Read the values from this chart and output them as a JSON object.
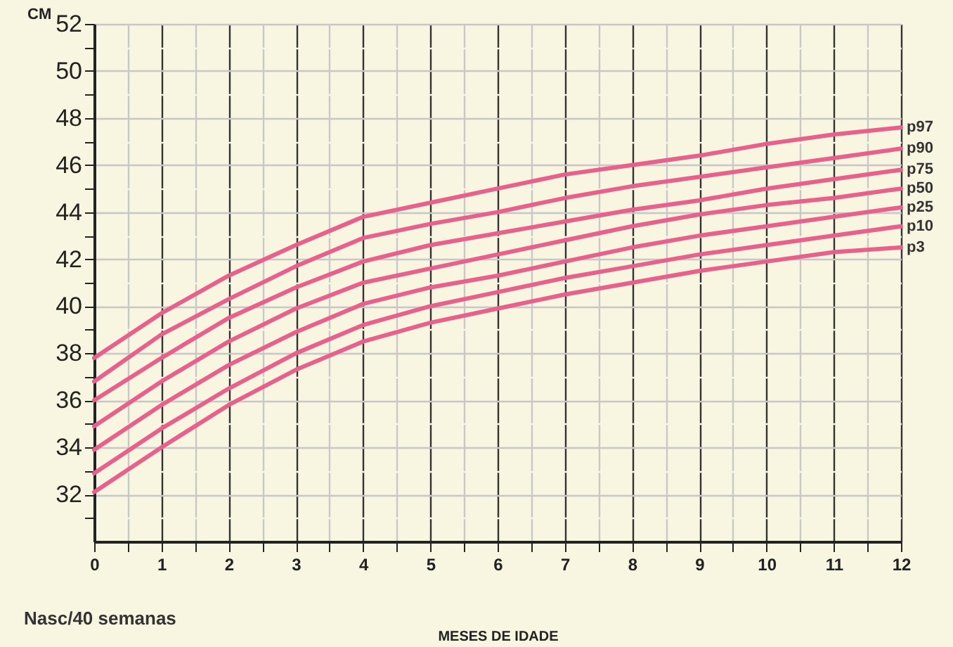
{
  "chart_data": {
    "type": "line",
    "ylabel": "CM",
    "xlabel": "MESES DE IDADE",
    "annotations": [
      "Nasc/40 semanas"
    ],
    "x": [
      0,
      1,
      2,
      3,
      4,
      5,
      6,
      7,
      8,
      9,
      10,
      11,
      12
    ],
    "series": [
      {
        "name": "p97",
        "color": "#e8618c",
        "values": [
          37.8,
          39.7,
          41.3,
          42.6,
          43.8,
          44.4,
          45.0,
          45.6,
          46.0,
          46.4,
          46.9,
          47.3,
          47.6
        ]
      },
      {
        "name": "p90",
        "color": "#e8618c",
        "values": [
          36.8,
          38.8,
          40.3,
          41.7,
          42.9,
          43.5,
          44.0,
          44.6,
          45.1,
          45.5,
          45.9,
          46.3,
          46.7
        ]
      },
      {
        "name": "p75",
        "color": "#e8618c",
        "values": [
          36.0,
          37.8,
          39.5,
          40.8,
          41.9,
          42.6,
          43.1,
          43.6,
          44.1,
          44.5,
          45.0,
          45.4,
          45.8
        ]
      },
      {
        "name": "p50",
        "color": "#e8618c",
        "values": [
          34.9,
          36.8,
          38.5,
          39.9,
          41.0,
          41.6,
          42.2,
          42.8,
          43.4,
          43.9,
          44.3,
          44.6,
          45.0
        ]
      },
      {
        "name": "p25",
        "color": "#e8618c",
        "values": [
          33.9,
          35.8,
          37.5,
          38.9,
          40.1,
          40.8,
          41.3,
          41.9,
          42.5,
          43.0,
          43.4,
          43.8,
          44.2
        ]
      },
      {
        "name": "p10",
        "color": "#e8618c",
        "values": [
          32.9,
          34.8,
          36.5,
          38.0,
          39.2,
          40.0,
          40.6,
          41.2,
          41.7,
          42.2,
          42.6,
          43.0,
          43.4
        ]
      },
      {
        "name": "p3",
        "color": "#e8618c",
        "values": [
          32.1,
          34.0,
          35.8,
          37.3,
          38.5,
          39.3,
          39.9,
          40.5,
          41.0,
          41.5,
          41.9,
          42.3,
          42.5
        ]
      }
    ],
    "xlim": [
      0,
      12
    ],
    "xticks": [
      0,
      {
        "value": 0.5,
        "label": null
      },
      1,
      {
        "value": 1.5,
        "label": null
      },
      2,
      {
        "value": 2.5,
        "label": null
      },
      3,
      {
        "value": 3.5,
        "label": null
      },
      4,
      {
        "value": 4.5,
        "label": null
      },
      5,
      {
        "value": 5.5,
        "label": null
      },
      6,
      {
        "value": 6.5,
        "label": null
      },
      7,
      {
        "value": 7.5,
        "label": null
      },
      8,
      {
        "value": 8.5,
        "label": null
      },
      9,
      {
        "value": 9.5,
        "label": null
      },
      10,
      {
        "value": 10.5,
        "label": null
      },
      11,
      {
        "value": 11.5,
        "label": null
      },
      12
    ],
    "ylim": [
      30,
      52
    ],
    "yticks": [
      {
        "value": 31,
        "label": null
      },
      32,
      {
        "value": 33,
        "label": null
      },
      34,
      {
        "value": 35,
        "label": null
      },
      36,
      {
        "value": 37,
        "label": null
      },
      38,
      {
        "value": 39,
        "label": null
      },
      40,
      {
        "value": 41,
        "label": null
      },
      42,
      {
        "value": 43,
        "label": null
      },
      44,
      {
        "value": 45,
        "label": null
      },
      46,
      {
        "value": 47,
        "label": null
      },
      48,
      {
        "value": 49,
        "label": null
      },
      50,
      {
        "value": 51,
        "label": null
      },
      52
    ],
    "grid": true,
    "marker": "none",
    "line_style": "solid"
  }
}
